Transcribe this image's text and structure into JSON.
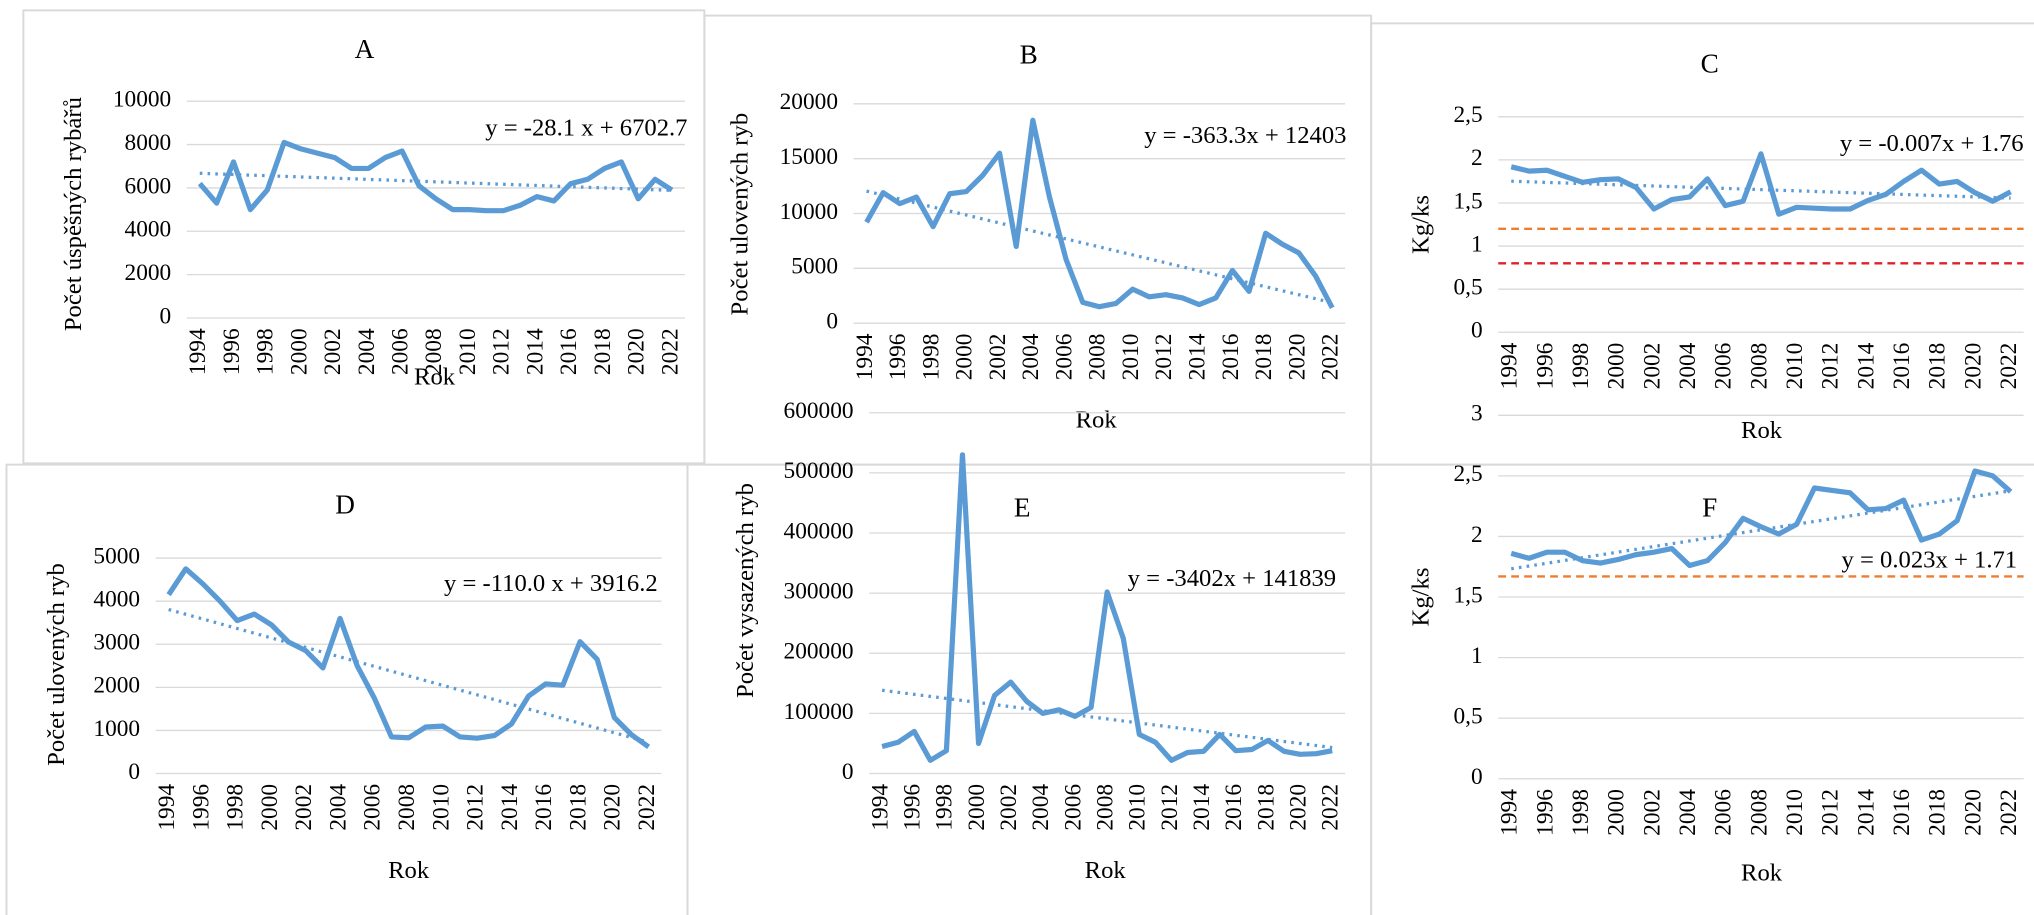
{
  "chart_data": [
    {
      "type": "line",
      "title": "A",
      "y_label": "Počet úspěšných rybářů",
      "x_label": "Rok",
      "equation": "y = -28.1 x + 6702.7",
      "x": [
        1994,
        1995,
        1996,
        1997,
        1998,
        1999,
        2000,
        2001,
        2002,
        2003,
        2004,
        2005,
        2006,
        2007,
        2008,
        2009,
        2010,
        2011,
        2012,
        2013,
        2014,
        2015,
        2016,
        2017,
        2018,
        2019,
        2020,
        2021,
        2022
      ],
      "values": [
        6200,
        5300,
        7200,
        5000,
        5900,
        8100,
        7800,
        7600,
        7400,
        6900,
        6900,
        7400,
        7700,
        6100,
        5500,
        5000,
        5000,
        4950,
        4950,
        5200,
        5600,
        5400,
        6200,
        6400,
        6900,
        7200,
        5500,
        6400,
        5900
      ],
      "color": "#5b9bd5",
      "trend": {
        "x": [
          1994,
          2022
        ],
        "values": [
          6675,
          5888
        ],
        "color": "#5b9bd5"
      },
      "xlim": [
        1994,
        2022
      ],
      "xticks": [
        1994,
        1996,
        1998,
        2000,
        2002,
        2004,
        2006,
        2008,
        2010,
        2012,
        2014,
        2016,
        2018,
        2020,
        2022
      ],
      "ylim": [
        0,
        10000
      ],
      "yticks": [
        0,
        2000,
        4000,
        6000,
        8000,
        10000
      ],
      "grid": true
    },
    {
      "type": "line",
      "title": "B",
      "y_label": "Počet ulovených ryb",
      "x_label": "Rok",
      "equation": "y = -363.3x + 12403",
      "x": [
        1994,
        1995,
        1996,
        1997,
        1998,
        1999,
        2000,
        2001,
        2002,
        2003,
        2004,
        2005,
        2006,
        2007,
        2008,
        2009,
        2010,
        2011,
        2012,
        2013,
        2014,
        2015,
        2016,
        2017,
        2018,
        2019,
        2020,
        2021,
        2022
      ],
      "values": [
        9200,
        11900,
        10900,
        11500,
        8800,
        11800,
        12000,
        13500,
        15500,
        7000,
        18500,
        11500,
        5800,
        1900,
        1500,
        1800,
        3100,
        2400,
        2600,
        2300,
        1700,
        2300,
        4800,
        2900,
        8200,
        7200,
        6400,
        4300,
        1400
      ],
      "color": "#5b9bd5",
      "trend": {
        "x": [
          1994,
          2022
        ],
        "values": [
          12040,
          1867
        ],
        "color": "#5b9bd5"
      },
      "xlim": [
        1994,
        2022
      ],
      "xticks": [
        1994,
        1996,
        1998,
        2000,
        2002,
        2004,
        2006,
        2008,
        2010,
        2012,
        2014,
        2016,
        2018,
        2020,
        2022
      ],
      "ylim": [
        0,
        20000
      ],
      "yticks": [
        0,
        5000,
        10000,
        15000,
        20000
      ],
      "grid": true
    },
    {
      "type": "line",
      "title": "C",
      "y_label": "Kg/ks",
      "x_label": "Rok",
      "equation": "y = -0.007x + 1.76",
      "x": [
        1994,
        1995,
        1996,
        1997,
        1998,
        1999,
        2000,
        2001,
        2002,
        2003,
        2004,
        2005,
        2006,
        2007,
        2008,
        2009,
        2010,
        2011,
        2012,
        2013,
        2014,
        2015,
        2016,
        2017,
        2018,
        2019,
        2020,
        2021,
        2022
      ],
      "values": [
        1.92,
        1.87,
        1.88,
        1.81,
        1.74,
        1.77,
        1.78,
        1.68,
        1.43,
        1.54,
        1.57,
        1.78,
        1.47,
        1.52,
        2.07,
        1.37,
        1.45,
        1.44,
        1.43,
        1.43,
        1.53,
        1.6,
        1.75,
        1.88,
        1.72,
        1.75,
        1.62,
        1.52,
        1.63
      ],
      "color": "#5b9bd5",
      "trend": {
        "x": [
          1994,
          2022
        ],
        "values": [
          1.753,
          1.557
        ],
        "color": "#5b9bd5"
      },
      "reference_lines": [
        {
          "value": 1.2,
          "color": "#ed7d31"
        },
        {
          "value": 0.8,
          "color": "#e0202a"
        }
      ],
      "xlim": [
        1994,
        2022
      ],
      "xticks": [
        1994,
        1996,
        1998,
        2000,
        2002,
        2004,
        2006,
        2008,
        2010,
        2012,
        2014,
        2016,
        2018,
        2020,
        2022
      ],
      "ylim": [
        0,
        2.5
      ],
      "yticks": [
        0,
        {
          "value": 0.5,
          "label": "0,5"
        },
        1,
        {
          "value": 1.5,
          "label": "1,5"
        },
        2,
        {
          "value": 2.5,
          "label": "2,5"
        }
      ],
      "grid": true
    },
    {
      "type": "line",
      "title": "D",
      "y_label": "Počet ulovených ryb",
      "x_label": "Rok",
      "equation": "y = -110.0 x + 3916.2",
      "x": [
        1994,
        1995,
        1996,
        1997,
        1998,
        1999,
        2000,
        2001,
        2002,
        2003,
        2004,
        2005,
        2006,
        2007,
        2008,
        2009,
        2010,
        2011,
        2012,
        2013,
        2014,
        2015,
        2016,
        2017,
        2018,
        2019,
        2020,
        2021,
        2022
      ],
      "values": [
        4150,
        4750,
        4400,
        4000,
        3550,
        3700,
        3450,
        3050,
        2850,
        2450,
        3600,
        2500,
        1750,
        850,
        830,
        1080,
        1100,
        850,
        820,
        880,
        1150,
        1800,
        2080,
        2050,
        3060,
        2650,
        1300,
        900,
        620
      ],
      "color": "#5b9bd5",
      "trend": {
        "x": [
          1994,
          2022
        ],
        "values": [
          3806,
          726
        ],
        "color": "#5b9bd5"
      },
      "xlim": [
        1994,
        2022
      ],
      "xticks": [
        1994,
        1996,
        1998,
        2000,
        2002,
        2004,
        2006,
        2008,
        2010,
        2012,
        2014,
        2016,
        2018,
        2020,
        2022
      ],
      "ylim": [
        0,
        5000
      ],
      "yticks": [
        0,
        1000,
        2000,
        3000,
        4000,
        5000
      ],
      "grid": true
    },
    {
      "type": "line",
      "title": "E",
      "y_label": "Počet vysazených ryb",
      "x_label": "Rok",
      "equation": "y = -3402x + 141839",
      "x": [
        1994,
        1995,
        1996,
        1997,
        1998,
        1999,
        2000,
        2001,
        2002,
        2003,
        2004,
        2005,
        2006,
        2007,
        2008,
        2009,
        2010,
        2011,
        2012,
        2013,
        2014,
        2015,
        2016,
        2017,
        2018,
        2019,
        2020,
        2021,
        2022
      ],
      "values": [
        45000,
        52000,
        70000,
        22000,
        38000,
        530000,
        50000,
        130000,
        152000,
        120000,
        100000,
        106000,
        95000,
        110000,
        302000,
        225000,
        65000,
        52000,
        22000,
        35000,
        37000,
        65000,
        38000,
        40000,
        55000,
        37000,
        32000,
        33000,
        38000
      ],
      "color": "#5b9bd5",
      "trend": {
        "x": [
          1994,
          2022
        ],
        "values": [
          138437,
          43181
        ],
        "color": "#5b9bd5"
      },
      "xlim": [
        1994,
        2022
      ],
      "xticks": [
        1994,
        1996,
        1998,
        2000,
        2002,
        2004,
        2006,
        2008,
        2010,
        2012,
        2014,
        2016,
        2018,
        2020,
        2022
      ],
      "ylim": [
        0,
        600000
      ],
      "yticks": [
        0,
        100000,
        200000,
        300000,
        400000,
        500000,
        600000
      ],
      "grid": true
    },
    {
      "type": "line",
      "title": "F",
      "y_label": "Kg/ks",
      "x_label": "Rok",
      "equation": "y = 0.023x + 1.71",
      "x": [
        1994,
        1995,
        1996,
        1997,
        1998,
        1999,
        2000,
        2001,
        2002,
        2003,
        2004,
        2005,
        2006,
        2007,
        2008,
        2009,
        2010,
        2011,
        2012,
        2013,
        2014,
        2015,
        2016,
        2017,
        2018,
        2019,
        2020,
        2021,
        2022
      ],
      "values": [
        1.86,
        1.82,
        1.87,
        1.87,
        1.8,
        1.78,
        1.81,
        1.85,
        1.87,
        1.9,
        1.76,
        1.8,
        1.95,
        2.15,
        2.08,
        2.02,
        2.1,
        2.4,
        2.38,
        2.36,
        2.22,
        2.23,
        2.3,
        1.97,
        2.02,
        2.13,
        2.54,
        2.5,
        2.37
      ],
      "color": "#5b9bd5",
      "trend": {
        "x": [
          1994,
          2022
        ],
        "values": [
          1.733,
          2.377
        ],
        "color": "#5b9bd5"
      },
      "reference_lines": [
        {
          "value": 1.67,
          "color": "#ed7d31"
        }
      ],
      "xlim": [
        1994,
        2022
      ],
      "xticks": [
        1994,
        1996,
        1998,
        2000,
        2002,
        2004,
        2006,
        2008,
        2010,
        2012,
        2014,
        2016,
        2018,
        2020,
        2022
      ],
      "ylim": [
        0,
        3
      ],
      "yticks": [
        0,
        {
          "value": 0.5,
          "label": "0,5"
        },
        1,
        {
          "value": 1.5,
          "label": "1,5"
        },
        2,
        {
          "value": 2.5,
          "label": "2,5"
        },
        3
      ],
      "grid": true
    }
  ]
}
